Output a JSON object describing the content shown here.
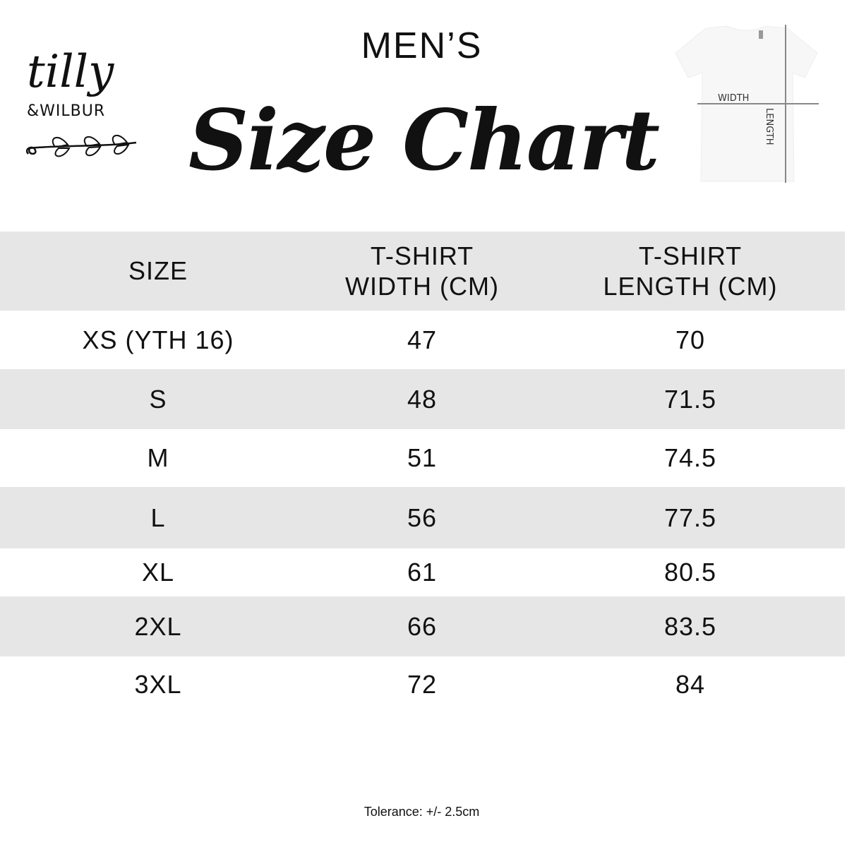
{
  "header": {
    "subtitle": "MEN’S",
    "title": "Size Chart"
  },
  "logo": {
    "line1": "tilly",
    "line2": "&WILBUR"
  },
  "diagram": {
    "width_label": "WIDTH",
    "length_label": "LENGTH"
  },
  "table": {
    "headers": [
      "SIZE",
      "T-SHIRT\nWIDTH (CM)",
      "T-SHIRT\nLENGTH (CM)"
    ],
    "rows": [
      [
        "XS (YTH 16)",
        "47",
        "70"
      ],
      [
        "S",
        "48",
        "71.5"
      ],
      [
        "M",
        "51",
        "74.5"
      ],
      [
        "L",
        "56",
        "77.5"
      ],
      [
        "XL",
        "61",
        "80.5"
      ],
      [
        "2XL",
        "66",
        "83.5"
      ],
      [
        "3XL",
        "72",
        "84"
      ]
    ]
  },
  "footer": {
    "tolerance": "Tolerance: +/- 2.5cm"
  },
  "colors": {
    "band": "#e6e6e6",
    "text": "#111111"
  }
}
